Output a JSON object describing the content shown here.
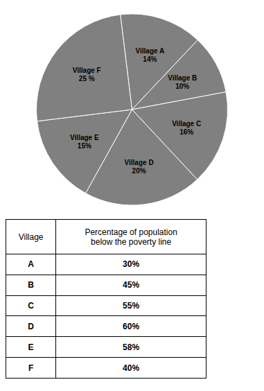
{
  "chart_data": [
    {
      "type": "pie",
      "categories": [
        "Village A",
        "Village B",
        "Village C",
        "Village D",
        "Village E",
        "Village F"
      ],
      "values": [
        14,
        10,
        16,
        20,
        15,
        25
      ],
      "value_labels": [
        "14%",
        "10%",
        "16%",
        "20%",
        "15%",
        "25 %"
      ],
      "data_labels": true
    },
    {
      "type": "table",
      "columns": [
        "Village",
        "Percentage of population\nbelow the poverty line"
      ],
      "rows": [
        [
          "A",
          "30%"
        ],
        [
          "B",
          "45%"
        ],
        [
          "C",
          "55%"
        ],
        [
          "D",
          "60%"
        ],
        [
          "E",
          "58%"
        ],
        [
          "F",
          "40%"
        ]
      ]
    }
  ]
}
